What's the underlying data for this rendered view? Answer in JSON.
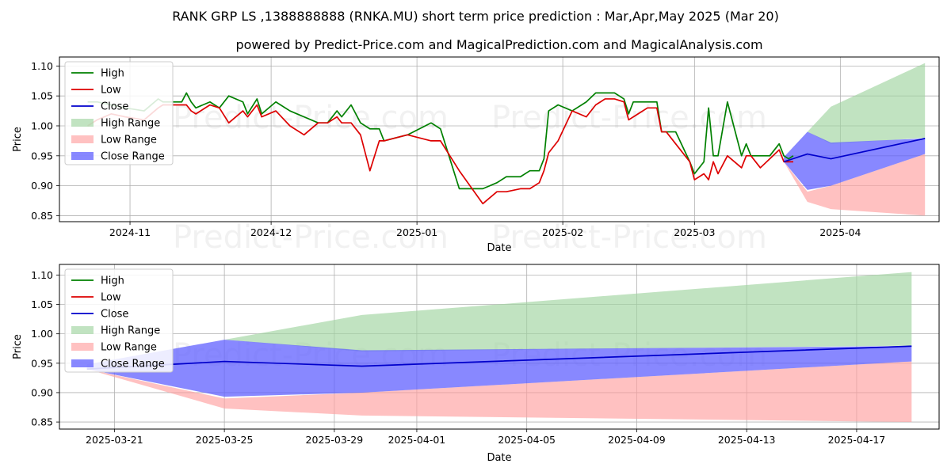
{
  "title": "RANK GRP LS ,1388888888 (RNKA.MU) short term price prediction : Mar,Apr,May 2025 (Mar 20)",
  "subtitle": "powered by Predict-Price.com and MagicalPrediction.com and MagicalAnalysis.com",
  "watermark": "Predict-Price.com",
  "colors": {
    "high": "#008000",
    "low": "#dd0000",
    "close": "#0000cc",
    "high_range": "#9fd49f",
    "low_range": "#ff9f9f",
    "close_range": "#6060ff"
  },
  "chart_data": [
    {
      "type": "line",
      "xlabel": "Date",
      "ylabel": "Price",
      "x_ticks": [
        "2024-11",
        "2024-12",
        "2025-01",
        "2025-02",
        "2025-03",
        "2025-04"
      ],
      "y_ticks": [
        "0.85",
        "0.90",
        "0.95",
        "1.00",
        "1.05",
        "1.10"
      ],
      "ylim": [
        0.84,
        1.115
      ],
      "xlim": [
        "2024-10-17",
        "2025-04-22"
      ],
      "grid": true,
      "legend": {
        "position": "top-left",
        "entries": [
          "High",
          "Low",
          "Close",
          "High Range",
          "Low Range",
          "Close Range"
        ]
      },
      "series": [
        {
          "name": "High",
          "x": [
            "2024-10-23",
            "2024-10-25",
            "2024-10-28",
            "2024-10-31",
            "2024-11-04",
            "2024-11-07",
            "2024-11-08",
            "2024-11-11",
            "2024-11-12",
            "2024-11-13",
            "2024-11-14",
            "2024-11-15",
            "2024-11-18",
            "2024-11-20",
            "2024-11-22",
            "2024-11-25",
            "2024-11-26",
            "2024-11-28",
            "2024-11-29",
            "2024-12-02",
            "2024-12-05",
            "2024-12-08",
            "2024-12-11",
            "2024-12-13",
            "2024-12-15",
            "2024-12-16",
            "2024-12-18",
            "2024-12-20",
            "2024-12-22",
            "2024-12-24",
            "2024-12-25",
            "2024-12-30",
            "2025-01-04",
            "2025-01-06",
            "2025-01-10",
            "2025-01-15",
            "2025-01-18",
            "2025-01-20",
            "2025-01-23",
            "2025-01-25",
            "2025-01-27",
            "2025-01-28",
            "2025-01-29",
            "2025-01-31",
            "2025-02-03",
            "2025-02-06",
            "2025-02-08",
            "2025-02-09",
            "2025-02-10",
            "2025-02-12",
            "2025-02-14",
            "2025-02-15",
            "2025-02-16",
            "2025-02-17",
            "2025-02-19",
            "2025-02-20",
            "2025-02-21",
            "2025-02-22",
            "2025-02-23",
            "2025-02-25",
            "2025-02-28",
            "2025-03-01",
            "2025-03-03",
            "2025-03-04",
            "2025-03-05",
            "2025-03-06",
            "2025-03-08",
            "2025-03-11",
            "2025-03-12",
            "2025-03-13",
            "2025-03-15",
            "2025-03-17",
            "2025-03-19",
            "2025-03-20",
            "2025-03-21",
            "2025-03-22"
          ],
          "values": [
            1.04,
            1.04,
            1.035,
            1.03,
            1.025,
            1.045,
            1.04,
            1.04,
            1.04,
            1.055,
            1.04,
            1.03,
            1.04,
            1.03,
            1.05,
            1.04,
            1.02,
            1.045,
            1.02,
            1.04,
            1.025,
            1.015,
            1.005,
            1.005,
            1.025,
            1.015,
            1.035,
            1.005,
            0.995,
            0.995,
            0.975,
            0.985,
            1.005,
            0.995,
            0.895,
            0.895,
            0.905,
            0.915,
            0.915,
            0.925,
            0.925,
            0.945,
            1.025,
            1.035,
            1.025,
            1.04,
            1.055,
            1.055,
            1.055,
            1.055,
            1.045,
            1.02,
            1.04,
            1.04,
            1.04,
            1.04,
            1.04,
            0.99,
            0.99,
            0.99,
            0.94,
            0.92,
            0.94,
            1.03,
            0.95,
            0.95,
            1.04,
            0.95,
            0.97,
            0.95,
            0.95,
            0.95,
            0.97,
            0.95,
            0.945,
            0.95
          ]
        },
        {
          "name": "Low",
          "x": [
            "2024-10-23",
            "2024-10-25",
            "2024-10-28",
            "2024-10-31",
            "2024-11-04",
            "2024-11-07",
            "2024-11-08",
            "2024-11-11",
            "2024-11-12",
            "2024-11-13",
            "2024-11-14",
            "2024-11-15",
            "2024-11-18",
            "2024-11-20",
            "2024-11-22",
            "2024-11-25",
            "2024-11-26",
            "2024-11-28",
            "2024-11-29",
            "2024-12-02",
            "2024-12-05",
            "2024-12-08",
            "2024-12-11",
            "2024-12-13",
            "2024-12-15",
            "2024-12-16",
            "2024-12-18",
            "2024-12-20",
            "2024-12-22",
            "2024-12-24",
            "2024-12-25",
            "2024-12-30",
            "2025-01-04",
            "2025-01-06",
            "2025-01-10",
            "2025-01-15",
            "2025-01-18",
            "2025-01-20",
            "2025-01-23",
            "2025-01-25",
            "2025-01-27",
            "2025-01-28",
            "2025-01-29",
            "2025-01-31",
            "2025-02-03",
            "2025-02-06",
            "2025-02-08",
            "2025-02-09",
            "2025-02-10",
            "2025-02-12",
            "2025-02-14",
            "2025-02-15",
            "2025-02-16",
            "2025-02-17",
            "2025-02-19",
            "2025-02-20",
            "2025-02-21",
            "2025-02-22",
            "2025-02-23",
            "2025-02-25",
            "2025-02-28",
            "2025-03-01",
            "2025-03-03",
            "2025-03-04",
            "2025-03-05",
            "2025-03-06",
            "2025-03-08",
            "2025-03-11",
            "2025-03-12",
            "2025-03-13",
            "2025-03-15",
            "2025-03-17",
            "2025-03-19",
            "2025-03-20",
            "2025-03-21",
            "2025-03-22"
          ],
          "values": [
            1.0,
            1.01,
            1.02,
            1.015,
            1.01,
            1.03,
            1.035,
            1.035,
            1.035,
            1.035,
            1.025,
            1.02,
            1.035,
            1.03,
            1.005,
            1.025,
            1.015,
            1.035,
            1.015,
            1.025,
            1.0,
            0.985,
            1.005,
            1.005,
            1.015,
            1.005,
            1.005,
            0.985,
            0.925,
            0.975,
            0.975,
            0.985,
            0.975,
            0.975,
            0.925,
            0.87,
            0.89,
            0.89,
            0.895,
            0.895,
            0.905,
            0.925,
            0.955,
            0.975,
            1.025,
            1.015,
            1.035,
            1.04,
            1.045,
            1.045,
            1.04,
            1.01,
            1.015,
            1.02,
            1.03,
            1.03,
            1.03,
            0.99,
            0.99,
            0.97,
            0.94,
            0.91,
            0.92,
            0.91,
            0.94,
            0.92,
            0.95,
            0.93,
            0.95,
            0.95,
            0.93,
            0.945,
            0.96,
            0.94,
            0.94,
            0.94
          ]
        },
        {
          "name": "Close",
          "x": [
            "2025-03-20",
            "2025-03-25",
            "2025-03-30",
            "2025-04-19"
          ],
          "values": [
            0.94,
            0.953,
            0.945,
            0.979
          ]
        },
        {
          "name": "High Range",
          "x": [
            "2025-03-20",
            "2025-03-25",
            "2025-03-30",
            "2025-04-19"
          ],
          "upper": [
            0.95,
            0.99,
            1.032,
            1.105
          ],
          "lower": [
            0.95,
            0.99,
            0.97,
            0.98
          ]
        },
        {
          "name": "Low Range",
          "x": [
            "2025-03-20",
            "2025-03-25",
            "2025-03-30",
            "2025-04-19"
          ],
          "upper": [
            0.94,
            0.89,
            0.9,
            0.953
          ],
          "lower": [
            0.94,
            0.873,
            0.861,
            0.85
          ]
        },
        {
          "name": "Close Range",
          "x": [
            "2025-03-20",
            "2025-03-25",
            "2025-03-30",
            "2025-04-19"
          ],
          "upper": [
            0.948,
            0.99,
            0.972,
            0.979
          ],
          "lower": [
            0.94,
            0.893,
            0.9,
            0.953
          ]
        }
      ]
    },
    {
      "type": "line",
      "xlabel": "Date",
      "ylabel": "Price",
      "x_ticks": [
        "2025-03-21",
        "2025-03-25",
        "2025-03-29",
        "2025-04-01",
        "2025-04-05",
        "2025-04-09",
        "2025-04-13",
        "2025-04-17"
      ],
      "y_ticks": [
        "0.85",
        "0.90",
        "0.95",
        "1.00",
        "1.05",
        "1.10"
      ],
      "ylim": [
        0.838,
        1.118
      ],
      "xlim": [
        "2025-03-19",
        "2025-04-20"
      ],
      "grid": true,
      "legend": {
        "position": "top-left",
        "entries": [
          "High",
          "Low",
          "Close",
          "High Range",
          "Low Range",
          "Close Range"
        ]
      },
      "series": [
        {
          "name": "Close",
          "x": [
            "2025-03-20",
            "2025-03-25",
            "2025-03-30",
            "2025-04-19"
          ],
          "values": [
            0.94,
            0.953,
            0.945,
            0.979
          ]
        },
        {
          "name": "High Range",
          "x": [
            "2025-03-20",
            "2025-03-25",
            "2025-03-30",
            "2025-04-19"
          ],
          "upper": [
            0.95,
            0.99,
            1.032,
            1.105
          ],
          "lower": [
            0.95,
            0.99,
            0.97,
            0.98
          ]
        },
        {
          "name": "Low Range",
          "x": [
            "2025-03-20",
            "2025-03-25",
            "2025-03-30",
            "2025-04-19"
          ],
          "upper": [
            0.94,
            0.89,
            0.9,
            0.953
          ],
          "lower": [
            0.94,
            0.873,
            0.861,
            0.85
          ]
        },
        {
          "name": "Close Range",
          "x": [
            "2025-03-20",
            "2025-03-25",
            "2025-03-30",
            "2025-04-19"
          ],
          "upper": [
            0.948,
            0.99,
            0.972,
            0.979
          ],
          "lower": [
            0.94,
            0.893,
            0.9,
            0.953
          ]
        }
      ]
    }
  ]
}
